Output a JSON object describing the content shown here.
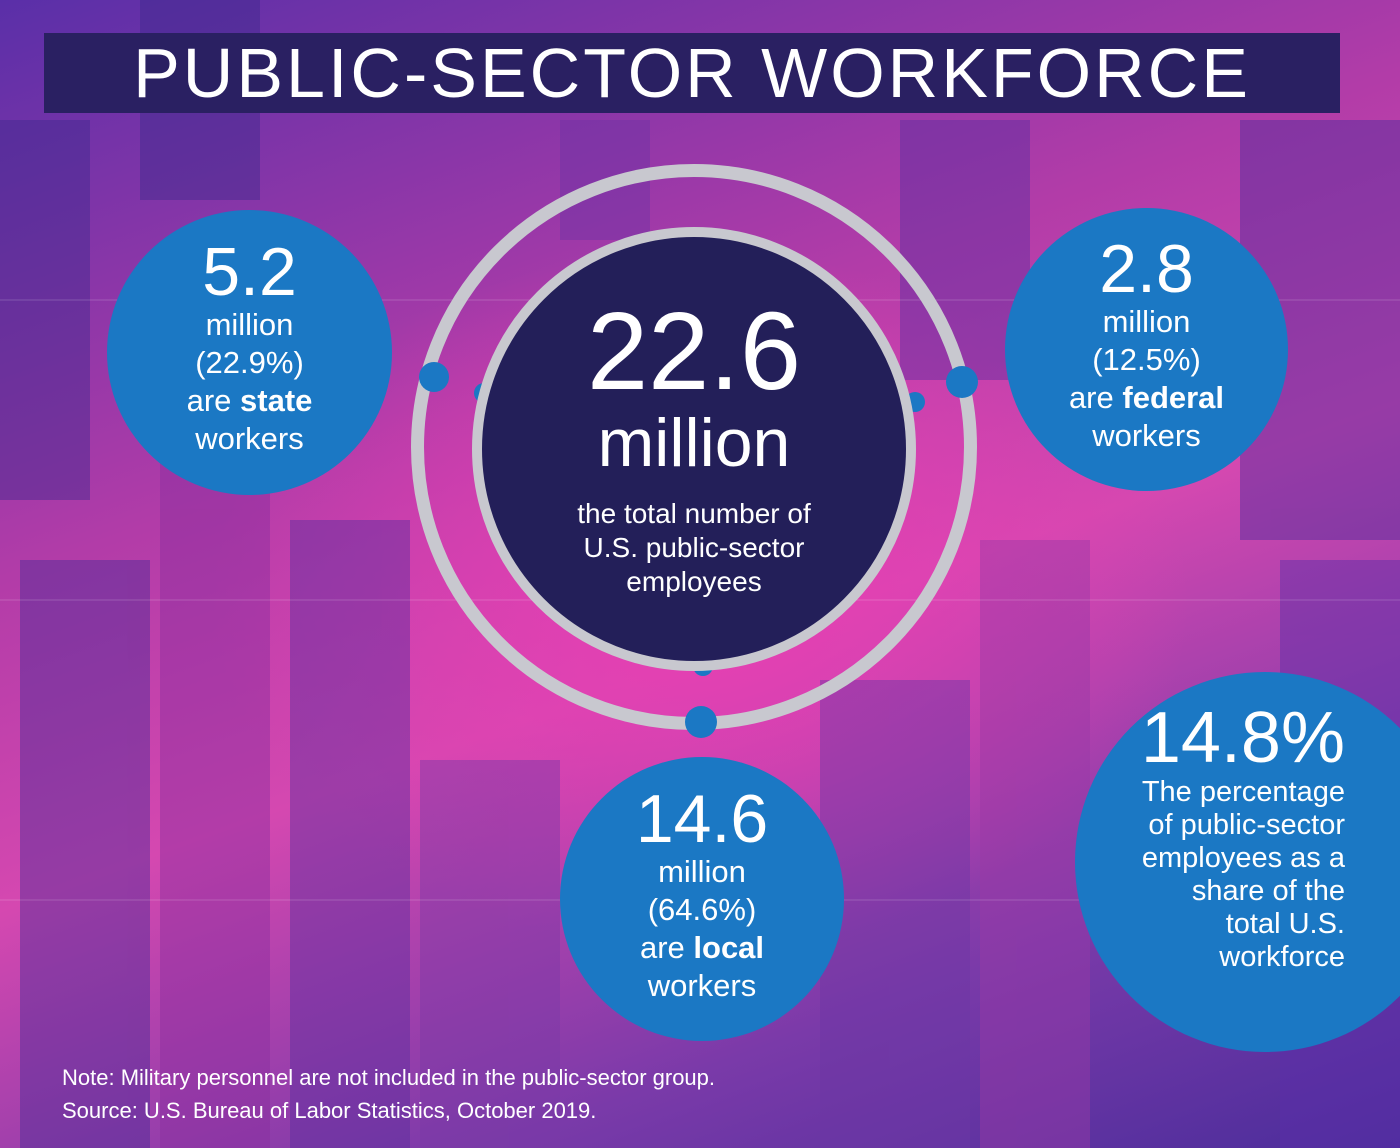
{
  "title": "PUBLIC-SECTOR WORKFORCE",
  "center": {
    "value": "22.6",
    "unit": "million",
    "caption_lines": [
      "the total number of",
      "U.S. public-sector",
      "employees"
    ]
  },
  "state": {
    "value": "5.2",
    "unit": "million",
    "pct": "(22.9%)",
    "are": "are",
    "bold": "state",
    "workers": "workers"
  },
  "federal": {
    "value": "2.8",
    "unit": "million",
    "pct": "(12.5%)",
    "are": "are",
    "bold": "federal",
    "workers": "workers"
  },
  "local": {
    "value": "14.6",
    "unit": "million",
    "pct": "(64.6%)",
    "are": "are",
    "bold": "local",
    "workers": "workers"
  },
  "share": {
    "value": "14.8%",
    "lines": [
      "The percentage",
      "of public-sector",
      "employees as a",
      "share of the",
      "total U.S.",
      "workforce"
    ]
  },
  "note": "Note: Military personnel are not included in the public-sector group.",
  "source": "Source: U.S. Bureau of Labor Statistics, October 2019.",
  "colors": {
    "circle_blue": "#1b78c4",
    "title_bg": "#2a2062",
    "core_bg": "#231f59",
    "ring_gray": "#c8c8cf"
  }
}
